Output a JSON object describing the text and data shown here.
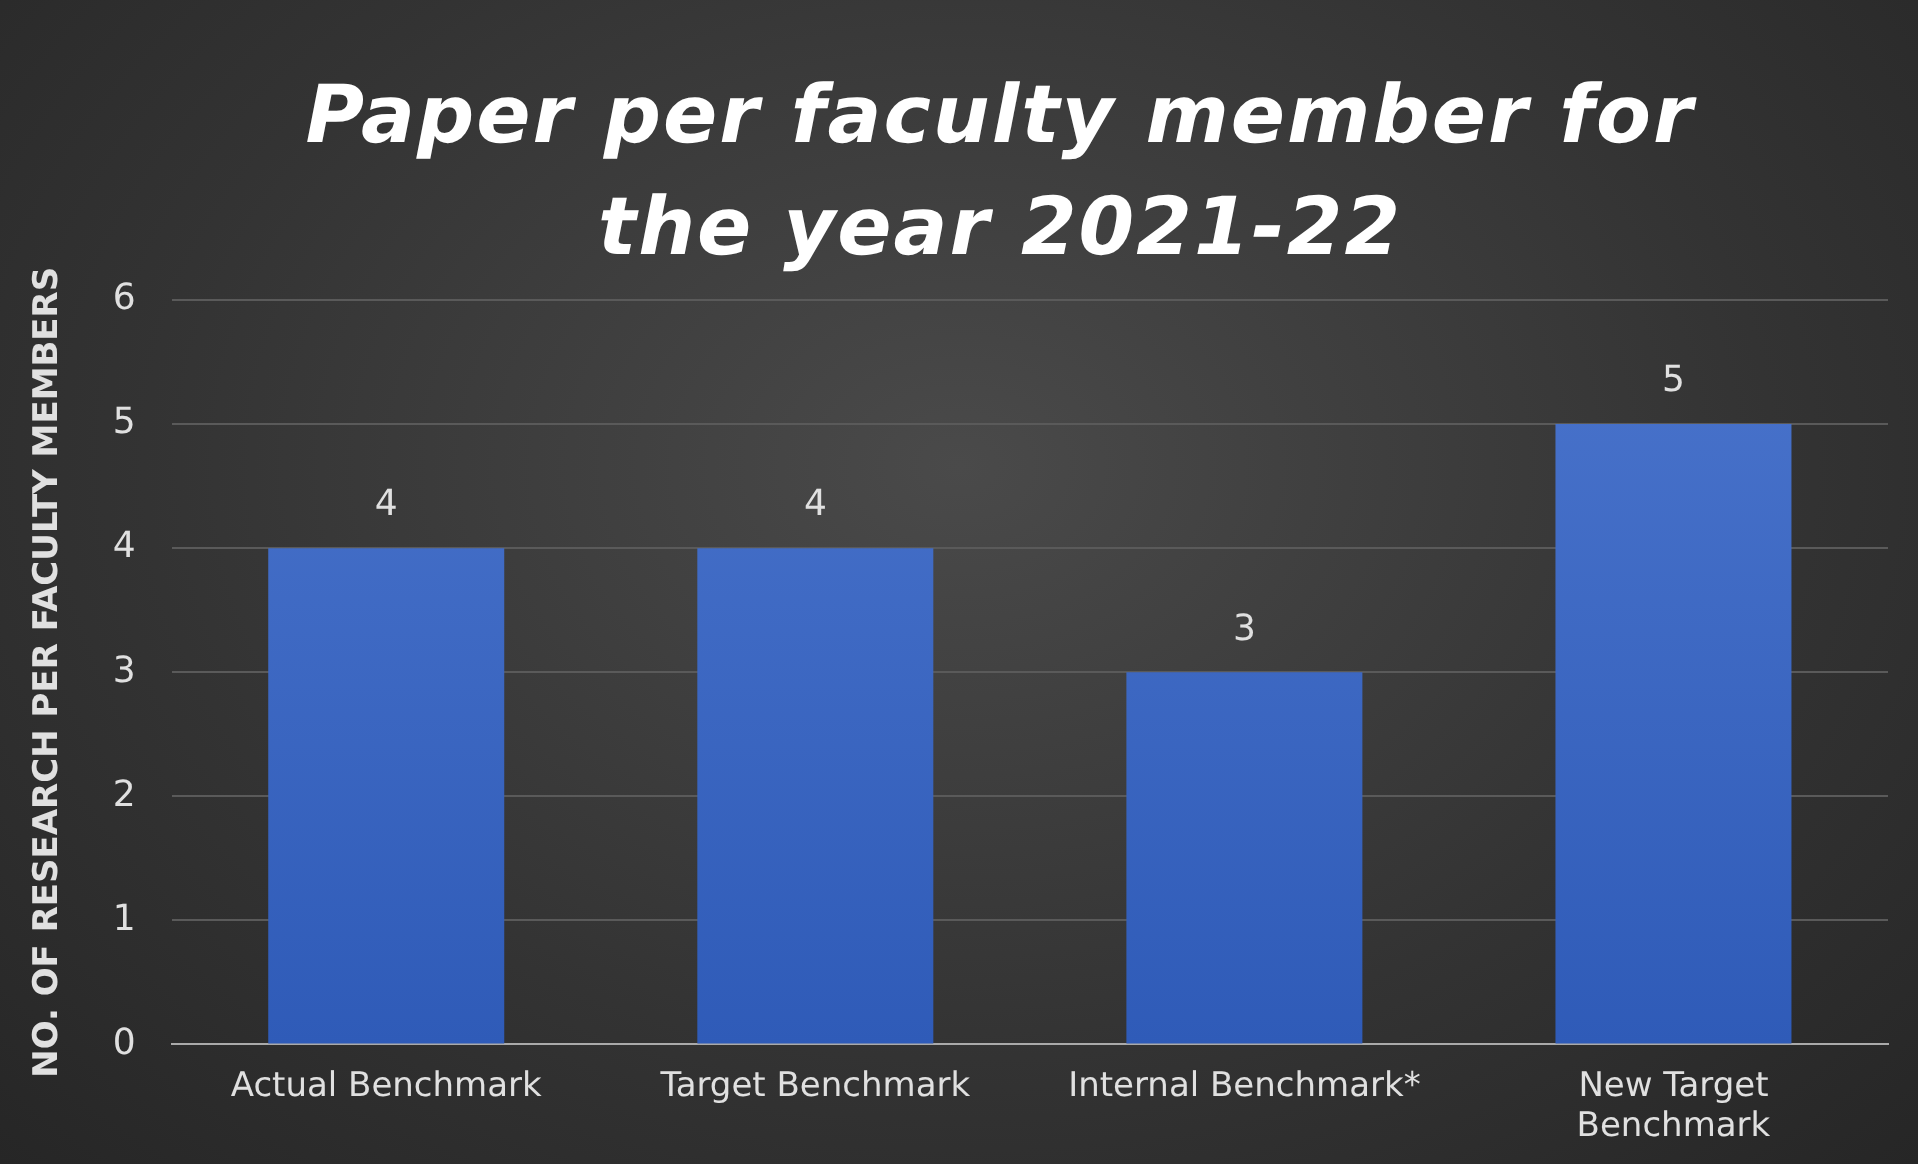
{
  "chart_data": {
    "type": "bar",
    "title": "Paper per faculty member for the year 2021-22",
    "ylabel": "NO. OF RESEARCH PER FACULTY MEMBERS",
    "categories": [
      "Actual Benchmark",
      "Target Benchmark",
      "Internal Benchmark*",
      "New Target Benchmark"
    ],
    "values": [
      4,
      4,
      3,
      5
    ],
    "color": "#4a74cc",
    "ylim": [
      0,
      6
    ],
    "yticks": [
      0,
      1,
      2,
      3,
      4,
      5,
      6
    ],
    "grid": "y",
    "data_labels": true,
    "legend": false
  }
}
